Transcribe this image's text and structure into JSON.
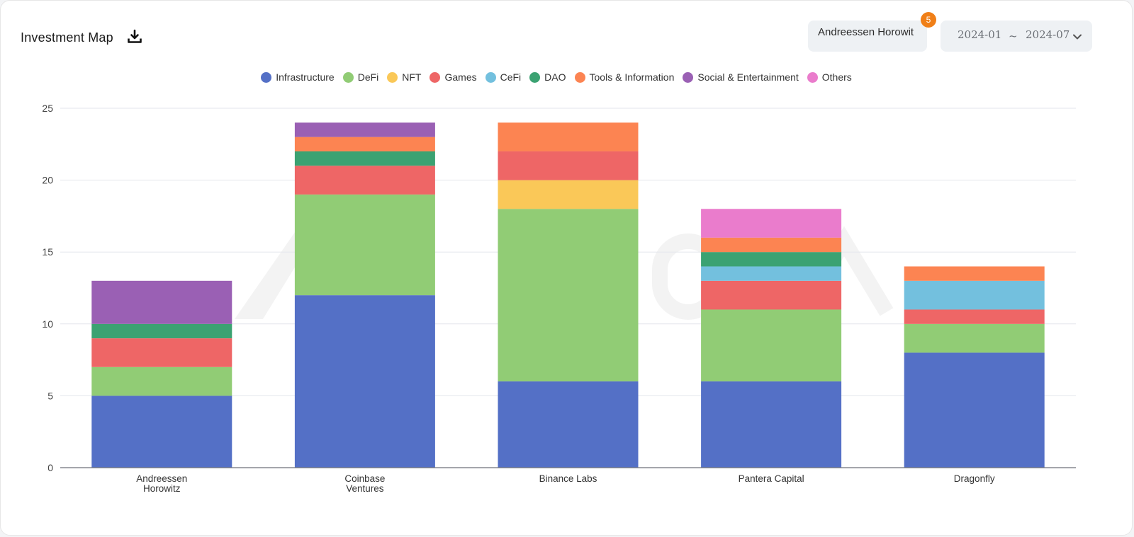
{
  "header": {
    "title": "Investment Map",
    "investor_filter": "Andreessen Horowit",
    "badge_count": "5",
    "date_start": "2024-01",
    "date_separator": "~",
    "date_end": "2024-07"
  },
  "chart_data": {
    "type": "bar",
    "stacked": true,
    "categories": [
      "Andreessen Horowitz",
      "Coinbase Ventures",
      "Binance Labs",
      "Pantera Capital",
      "Dragonfly"
    ],
    "category_labels": [
      [
        "Andreessen",
        "Horowitz"
      ],
      [
        "Coinbase",
        "Ventures"
      ],
      [
        "Binance Labs"
      ],
      [
        "Pantera Capital"
      ],
      [
        "Dragonfly"
      ]
    ],
    "series": [
      {
        "name": "Infrastructure",
        "color": "#5470c6",
        "values": [
          5,
          12,
          6,
          6,
          8
        ]
      },
      {
        "name": "DeFi",
        "color": "#91cc75",
        "values": [
          2,
          7,
          12,
          5,
          2
        ]
      },
      {
        "name": "NFT",
        "color": "#fac858",
        "values": [
          0,
          0,
          2,
          0,
          0
        ]
      },
      {
        "name": "Games",
        "color": "#ee6666",
        "values": [
          2,
          2,
          2,
          2,
          1
        ]
      },
      {
        "name": "CeFi",
        "color": "#73c0de",
        "values": [
          0,
          0,
          0,
          1,
          2
        ]
      },
      {
        "name": "DAO",
        "color": "#3ba272",
        "values": [
          1,
          1,
          0,
          1,
          0
        ]
      },
      {
        "name": "Tools & Information",
        "color": "#fc8452",
        "values": [
          0,
          1,
          2,
          1,
          1
        ]
      },
      {
        "name": "Social & Entertainment",
        "color": "#9a60b4",
        "values": [
          3,
          1,
          0,
          0,
          0
        ]
      },
      {
        "name": "Others",
        "color": "#ea7ccc",
        "values": [
          0,
          0,
          0,
          2,
          0
        ]
      }
    ],
    "ylim": [
      0,
      25
    ],
    "yticks": [
      0,
      5,
      10,
      15,
      20,
      25
    ],
    "grid": true,
    "legend_position": "top-center",
    "title": "",
    "xlabel": "",
    "ylabel": ""
  }
}
